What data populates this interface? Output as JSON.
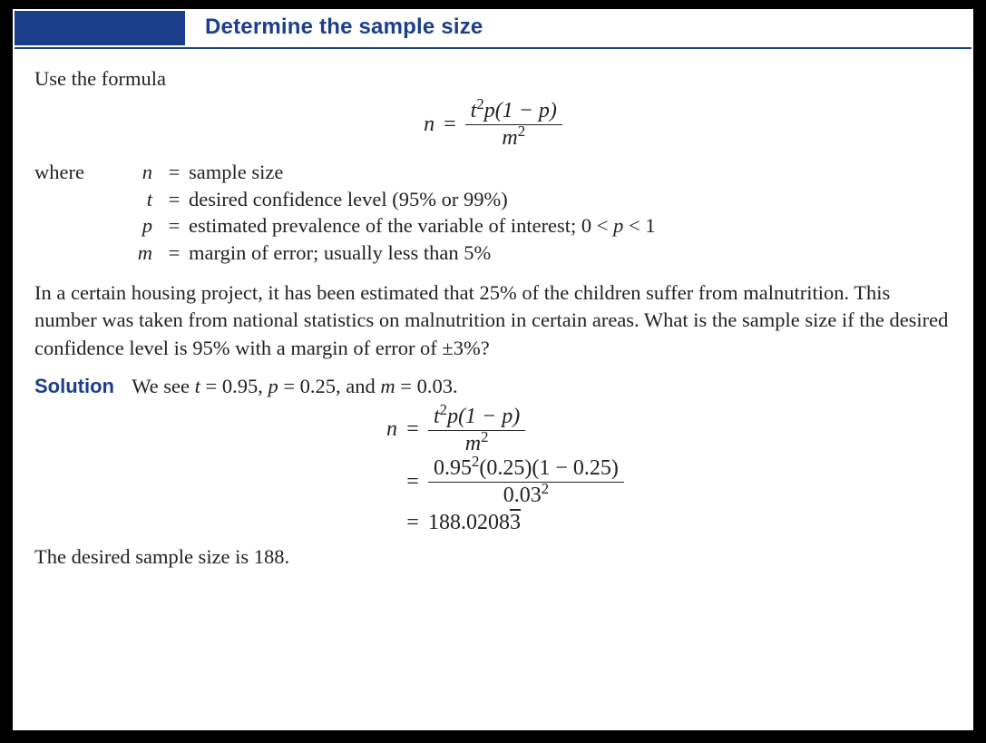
{
  "colors": {
    "page_bg": "#000000",
    "sheet_bg": "#ffffff",
    "accent": "#1b3f8b",
    "text": "#222222"
  },
  "typography": {
    "heading_family": "Arial",
    "heading_weight": "700",
    "heading_size_pt": 18,
    "body_family": "Times New Roman",
    "body_size_pt": 17
  },
  "title": "Determine the sample size",
  "intro": "Use the formula",
  "formula": {
    "lhs": "n",
    "eq": "=",
    "numerator_html": "t<sup>2</sup>p(1 − p)",
    "denominator_html": "m<sup>2</sup>"
  },
  "where_label": "where",
  "definitions": [
    {
      "var": "n",
      "eq": "=",
      "desc": "sample size"
    },
    {
      "var": "t",
      "eq": "=",
      "desc": "desired confidence level (95% or 99%)"
    },
    {
      "var": "p",
      "eq": "=",
      "desc": "estimated prevalence of the variable of interest; 0 < p < 1"
    },
    {
      "var": "m",
      "eq": "=",
      "desc": "margin of error; usually less than 5%"
    }
  ],
  "problem": "In a certain housing project, it has been estimated that 25% of the children suffer from malnutrition. This number was taken from national statistics on malnutrition in certain areas. What is the sample size if the desired confidence level is 95% with a margin of error of ±3%?",
  "solution": {
    "label": "Solution",
    "given_html": "We see <i>t</i> = 0.95, <i>p</i> = 0.25, and <i>m</i> = 0.03.",
    "steps": [
      {
        "lhs": "n",
        "eq": "=",
        "rhs_num_html": "t<sup>2</sup>p(1 − p)",
        "rhs_den_html": "m<sup>2</sup>",
        "is_fraction": true
      },
      {
        "lhs": "",
        "eq": "=",
        "rhs_num_html": "0.95<sup>2</sup>(0.25)(1 − 0.25)",
        "rhs_den_html": "0.03<sup>2</sup>",
        "is_fraction": true
      },
      {
        "lhs": "",
        "eq": "=",
        "rhs_html": "188.0208<span class=\"overline\">3</span>",
        "is_fraction": false
      }
    ]
  },
  "conclusion": "The desired sample size is 188."
}
